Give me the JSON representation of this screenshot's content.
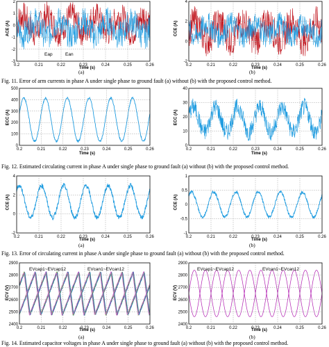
{
  "figures": {
    "fig11": {
      "caption": "Fig. 11.  Error of arm currents in phase A under single phase to ground fault (a) without (b) with the proposed control method.",
      "a": {
        "label": "(a)",
        "ylabel": "ACE (A)",
        "xlabel": "Time (s)",
        "annotations": [
          "Eap",
          "Ean"
        ],
        "xticks": [
          "0.2",
          "0.21",
          "0.22",
          "0.23",
          "0.24",
          "0.25",
          "0.26"
        ],
        "yticks": [
          "2",
          "1",
          "0",
          "-1",
          "-2",
          "-3"
        ]
      },
      "b": {
        "label": "(b)",
        "ylabel": "CCE (A)",
        "xlabel": "Time (s)",
        "xticks": [
          "0.2",
          "0.21",
          "0.22",
          "0.23",
          "0.24",
          "0.25",
          "0.26"
        ],
        "yticks": [
          "4",
          "2",
          "0",
          "-2"
        ]
      }
    },
    "fig12": {
      "caption": "Fig. 12.  Estimated circulating current in phase A under single phase to ground fault (a) without (b) with the proposed control method.",
      "a": {
        "ylabel": "ECC (A)",
        "xlabel": "Time (s)",
        "xticks": [
          "0.2",
          "0.21",
          "0.22",
          "0.23",
          "0.24",
          "0.25",
          "0.26"
        ],
        "yticks": [
          "500",
          "400",
          "300",
          "200",
          "100",
          "0"
        ]
      },
      "b": {
        "ylabel": "ECC (A)",
        "xlabel": "Time (s)",
        "xticks": [
          "0.2",
          "0.21",
          "0.22",
          "0.23",
          "0.24",
          "0.25",
          "0.26"
        ],
        "yticks": [
          "40",
          "30",
          "20",
          "10",
          "0"
        ]
      }
    },
    "fig13": {
      "caption": "Fig. 13.  Error of circulating current in phase A under single phase to ground fault (a) without (b) with the proposed control method.",
      "a": {
        "label": "(a)",
        "ylabel": "CCE (A)",
        "xlabel": "Time (s)",
        "xticks": [
          "0.2",
          "0.21",
          "0.22",
          "0.23",
          "0.24",
          "0.25",
          "0.26"
        ],
        "yticks": [
          "4",
          "2",
          "0",
          "-2"
        ]
      },
      "b": {
        "label": "(b)",
        "ylabel": "CCE (A)",
        "xlabel": "Time (s)",
        "xticks": [
          "0.2",
          "0.21",
          "0.22",
          "0.23",
          "0.24",
          "0.25",
          "0.26"
        ],
        "yticks": [
          "1",
          "0.5",
          "0",
          "-0.5",
          "-1"
        ]
      }
    },
    "fig14": {
      "caption": "Fig. 14.  Estimated capacitor voltages in phase A under single phase to ground fault (a) without (b) with the proposed control method.",
      "a": {
        "label": "(a)",
        "ylabel": "ECV (V)",
        "xlabel": "Time (s)",
        "annotations": [
          "EVcap1~EVcap12",
          "EVcan1~EVcan12"
        ],
        "xticks": [
          "0.2",
          "0.21",
          "0.22",
          "0.23",
          "0.24",
          "0.25",
          "0.26"
        ],
        "yticks": [
          "2900",
          "2800",
          "2700",
          "2600",
          "2500",
          "2400"
        ]
      },
      "b": {
        "label": "(b)",
        "ylabel": "ECV (V)",
        "xlabel": "Time (s)",
        "annotations": [
          "EVcap1~EVcap12",
          "EVcan1~EVcan12"
        ],
        "xticks": [
          "0.2",
          "0.21",
          "0.22",
          "0.23",
          "0.24",
          "0.25",
          "0.26"
        ],
        "yticks": [
          "2900",
          "2800",
          "2700",
          "2600",
          "2500",
          "2400"
        ]
      }
    }
  },
  "colors": {
    "blue": "#1f9ce0",
    "red": "#c0131c",
    "magenta": "#b01cb0",
    "green": "#2a9a3a",
    "grid": "#999999"
  }
}
